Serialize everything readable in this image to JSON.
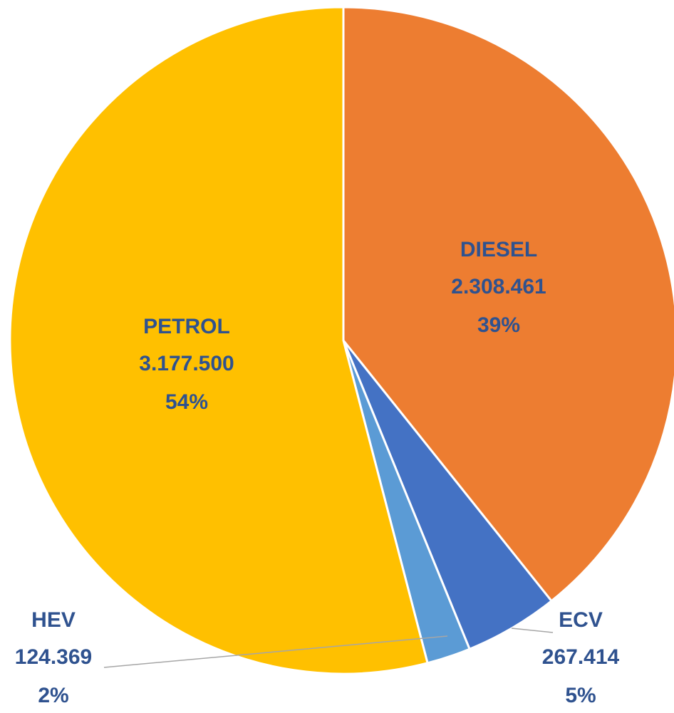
{
  "chart_data": {
    "type": "pie",
    "categories": [
      "DIESEL",
      "ECV",
      "HEV",
      "PETROL"
    ],
    "values": [
      2308461,
      267414,
      124369,
      3177500
    ],
    "value_labels": [
      "2.308.461",
      "267.414",
      "124.369",
      "3.177.500"
    ],
    "percent_labels": [
      "39%",
      "5%",
      "2%",
      "54%"
    ],
    "colors": [
      "#ED7D31",
      "#4472C4",
      "#5B9BD5",
      "#FFC000"
    ]
  }
}
